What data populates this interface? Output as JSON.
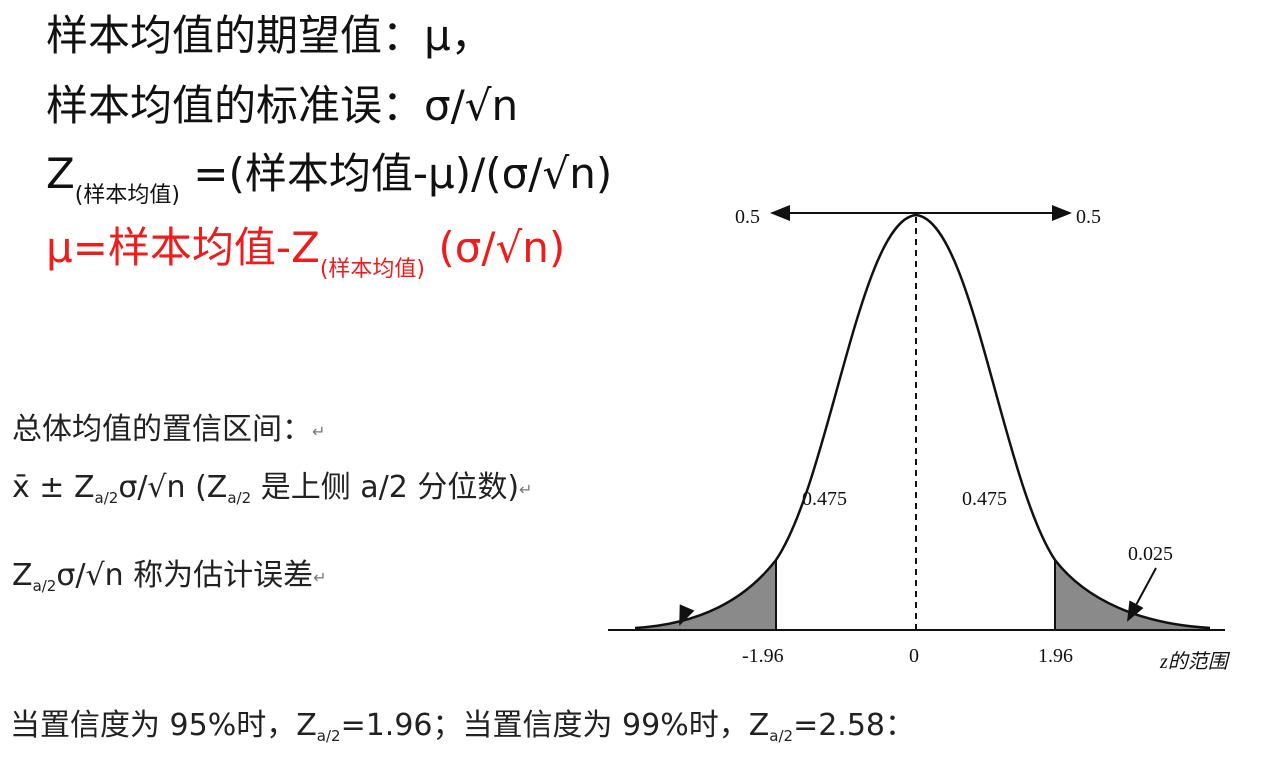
{
  "formulas": {
    "line1": "样本均值的期望值：μ，",
    "line2": "样本均值的标准误：σ/√n",
    "line3_main": "Z",
    "line3_sub": "(样本均值)",
    "line3_rest": " =(样本均值-μ)/(σ/√n)",
    "line4_main": "μ=样本均值-Z",
    "line4_sub": "(样本均值)",
    "line4_rest": " (σ/√n)"
  },
  "interval": {
    "title": "总体均值的置信区间：",
    "formula_main": "x̄  ±  Z",
    "formula_sub": "a/2",
    "formula_rest": "σ/√n   (Z",
    "formula_sub2": "a/2",
    "formula_tail": " 是上侧 a/2 分位数)",
    "error_main": "Z",
    "error_sub": "a/2",
    "error_rest": "σ/√n 称为估计误差",
    "return_mark": "↵"
  },
  "bottom": {
    "part1": "当置信度为 95%时，Z",
    "sub1": "a/2",
    "part2": "=1.96；当置信度为 99%时，Z",
    "sub2": "a/2",
    "part3": "=2.58："
  },
  "diagram": {
    "top_left_label": "0.5",
    "top_right_label": "0.5",
    "left_area_label": "0.475",
    "right_area_label": "0.475",
    "tail_label": "0.025",
    "tick_left": "-1.96",
    "tick_center": "0",
    "tick_right": "1.96",
    "axis_label": "z的范围",
    "colors": {
      "curve": "#111111",
      "tail_fill": "#8a8a8a"
    }
  }
}
